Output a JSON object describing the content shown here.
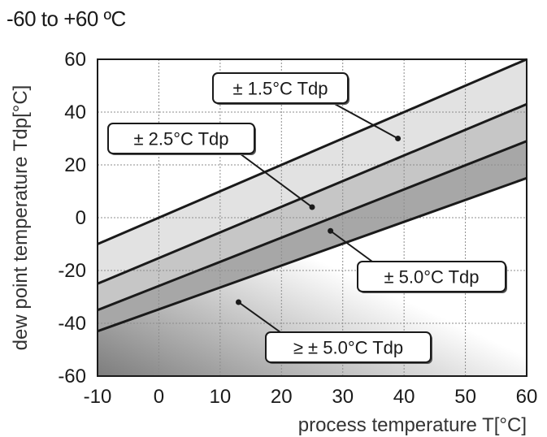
{
  "header": {
    "title": "-60 to +60 ºC"
  },
  "chart_data": {
    "type": "line",
    "xlabel": "process temperature  T[°C]",
    "ylabel": "dew point temperature  Tdp[°C]",
    "xlim": [
      -10,
      60
    ],
    "ylim": [
      -60,
      60
    ],
    "x_ticks": [
      -10,
      0,
      10,
      20,
      30,
      40,
      50,
      60
    ],
    "y_ticks": [
      60,
      40,
      20,
      0,
      -20,
      -40,
      -60
    ],
    "grid": true,
    "lines": [
      {
        "x": [
          -10,
          60
        ],
        "y": [
          -10,
          60
        ]
      },
      {
        "x": [
          -10,
          60
        ],
        "y": [
          -25,
          43
        ]
      },
      {
        "x": [
          -10,
          60
        ],
        "y": [
          -35,
          29
        ]
      },
      {
        "x": [
          -10,
          60
        ],
        "y": [
          -43,
          15
        ]
      }
    ],
    "regions": [
      {
        "label": "± 1.5°C Tdp",
        "point": [
          39,
          30
        ]
      },
      {
        "label": "± 2.5°C Tdp",
        "point": [
          25,
          4
        ]
      },
      {
        "label": "± 5.0°C Tdp",
        "point": [
          28,
          -5
        ]
      },
      {
        "label": "≥ ± 5.0°C Tdp",
        "point": [
          13,
          -32
        ]
      }
    ]
  },
  "colors": {
    "band1": "#e2e2e2",
    "band2": "#c6c6c6",
    "band3": "#a7a7a7",
    "lower_dark": "#7d7d7d",
    "lower_light": "#ffffff",
    "line": "#1a1a1a",
    "grid": "#8c8c8c"
  }
}
